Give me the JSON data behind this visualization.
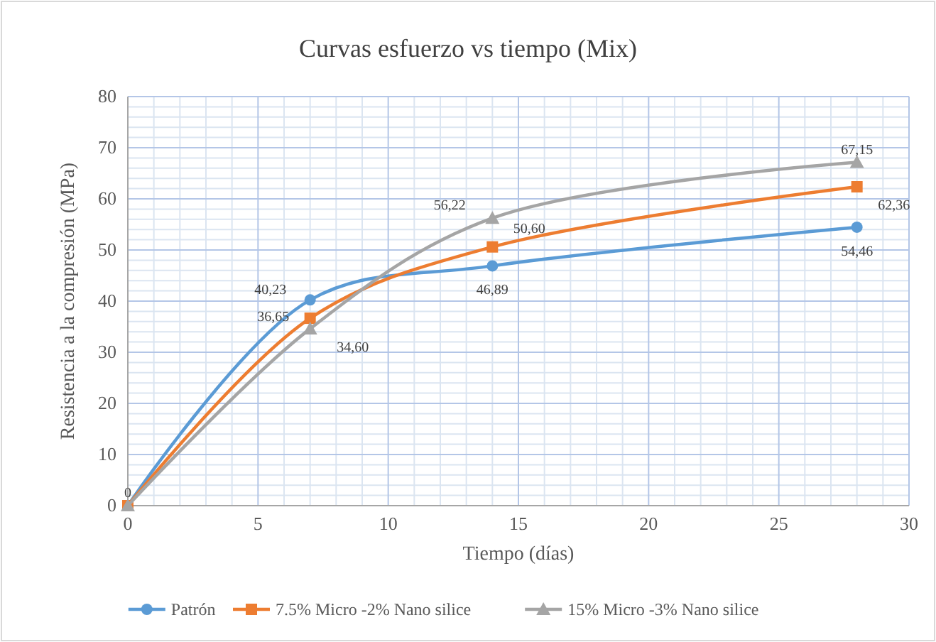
{
  "chart_data": {
    "type": "line",
    "title": "Curvas esfuerzo vs tiempo (Mix)",
    "xlabel": "Tiempo (días)",
    "ylabel": "Resistencia a la compresión (MPa)",
    "x": [
      0,
      7,
      14,
      28
    ],
    "xlim": [
      0,
      30
    ],
    "xticks": [
      0,
      5,
      10,
      15,
      20,
      25,
      30
    ],
    "ylim": [
      0,
      80
    ],
    "yticks": [
      0,
      10,
      20,
      30,
      40,
      50,
      60,
      70,
      80
    ],
    "grid": true,
    "legend": "bottom",
    "series": [
      {
        "name": "Patrón",
        "color": "#5b9bd5",
        "marker": "circle",
        "values": [
          0,
          40.23,
          46.89,
          54.46
        ],
        "value_labels": [
          "0",
          "40,23",
          "46,89",
          "54,46"
        ]
      },
      {
        "name": "7.5% Micro -2% Nano silice",
        "color": "#ed7d31",
        "marker": "square",
        "values": [
          0,
          36.65,
          50.6,
          62.36
        ],
        "value_labels": [
          null,
          "36,65",
          "50,60",
          "62,36"
        ]
      },
      {
        "name": "15% Micro -3% Nano silice",
        "color": "#a5a5a5",
        "marker": "triangle",
        "values": [
          0,
          34.6,
          56.22,
          67.15
        ],
        "value_labels": [
          null,
          "34,60",
          "56,22",
          "67,15"
        ]
      }
    ]
  }
}
